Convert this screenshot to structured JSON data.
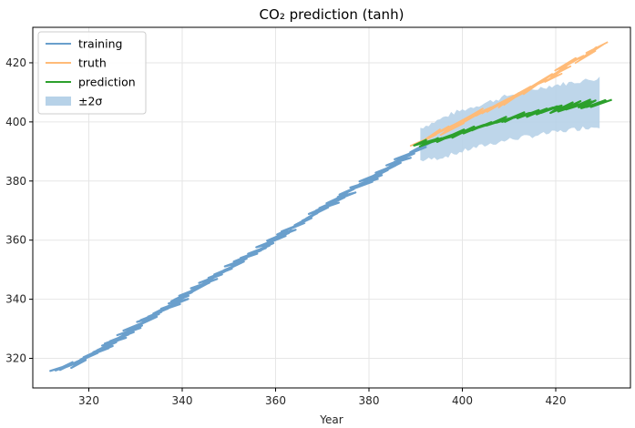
{
  "chart_data": {
    "type": "line",
    "title": "CO₂ prediction (tanh)",
    "xlabel": "Year",
    "ylabel": "",
    "xlim": [
      308,
      436
    ],
    "ylim": [
      310,
      432
    ],
    "xticks": [
      320,
      340,
      360,
      380,
      400,
      420
    ],
    "yticks": [
      320,
      340,
      360,
      380,
      400,
      420
    ],
    "grid": true,
    "legend_position": "top-left",
    "colors": {
      "training": "#6a9fcc",
      "truth": "#ffbb78",
      "prediction": "#2ca02c",
      "band": "#b7d2e8"
    },
    "legend": [
      "training",
      "truth",
      "prediction",
      "±2σ"
    ],
    "series": [
      {
        "name": "training",
        "x": [
          313.5,
          318,
          322,
          326,
          330,
          334,
          338,
          342,
          346,
          350,
          354,
          358,
          362,
          366,
          370,
          374,
          378,
          382,
          386,
          390,
          392
        ],
        "y": [
          316.5,
          318.5,
          322.5,
          326.5,
          330.5,
          334.5,
          338.5,
          342.5,
          346.5,
          350.5,
          354.5,
          358.5,
          362.5,
          366.5,
          370.5,
          374.5,
          378.5,
          382.5,
          386.5,
          390.5,
          392.5
        ]
      },
      {
        "name": "truth",
        "x": [
          391,
          394,
          398,
          402,
          406,
          410,
          414,
          418,
          422,
          426,
          430
        ],
        "y": [
          393.5,
          396,
          398.5,
          401.5,
          404.5,
          407.5,
          411,
          414.5,
          418.5,
          422.5,
          426
        ]
      },
      {
        "name": "prediction",
        "x": [
          391,
          394,
          398,
          402,
          406,
          410,
          414,
          418,
          422,
          426,
          430
        ],
        "y": [
          393,
          393.5,
          395.5,
          397.5,
          399.5,
          401,
          402.5,
          404,
          405,
          406,
          406.5
        ]
      },
      {
        "name": "±2σ",
        "x": [
          391,
          394,
          398,
          402,
          406,
          410,
          414,
          418,
          422,
          426,
          430
        ],
        "upper": [
          398,
          400,
          403,
          405,
          407,
          409,
          410.5,
          412,
          413,
          414,
          415
        ],
        "lower": [
          387,
          387.5,
          389,
          391,
          392.5,
          394,
          395,
          396,
          397,
          398,
          398.5
        ]
      }
    ]
  }
}
